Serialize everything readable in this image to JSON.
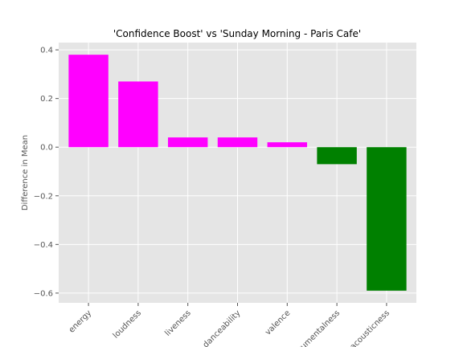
{
  "chart_data": {
    "type": "bar",
    "title": "'Confidence Boost' vs 'Sunday Morning - Paris Cafe'",
    "xlabel": "",
    "ylabel": "Difference in Mean",
    "categories": [
      "energy",
      "loudness",
      "liveness",
      "danceability",
      "valence",
      "instrumentalness",
      "acousticness"
    ],
    "values": [
      0.38,
      0.27,
      0.04,
      0.04,
      0.02,
      -0.07,
      -0.59
    ],
    "ylim": [
      -0.64,
      0.43
    ],
    "yticks": [
      0.4,
      0.2,
      0.0,
      -0.2,
      -0.4,
      -0.6
    ],
    "ytick_labels": [
      "0.4",
      "0.2",
      "0.0",
      "−0.2",
      "−0.4",
      "−0.6"
    ],
    "grid": true,
    "colors": {
      "positive": "#ff00ff",
      "negative": "#008000",
      "background": "#e5e5e5",
      "grid": "#ffffff",
      "tick": "#555555"
    }
  }
}
